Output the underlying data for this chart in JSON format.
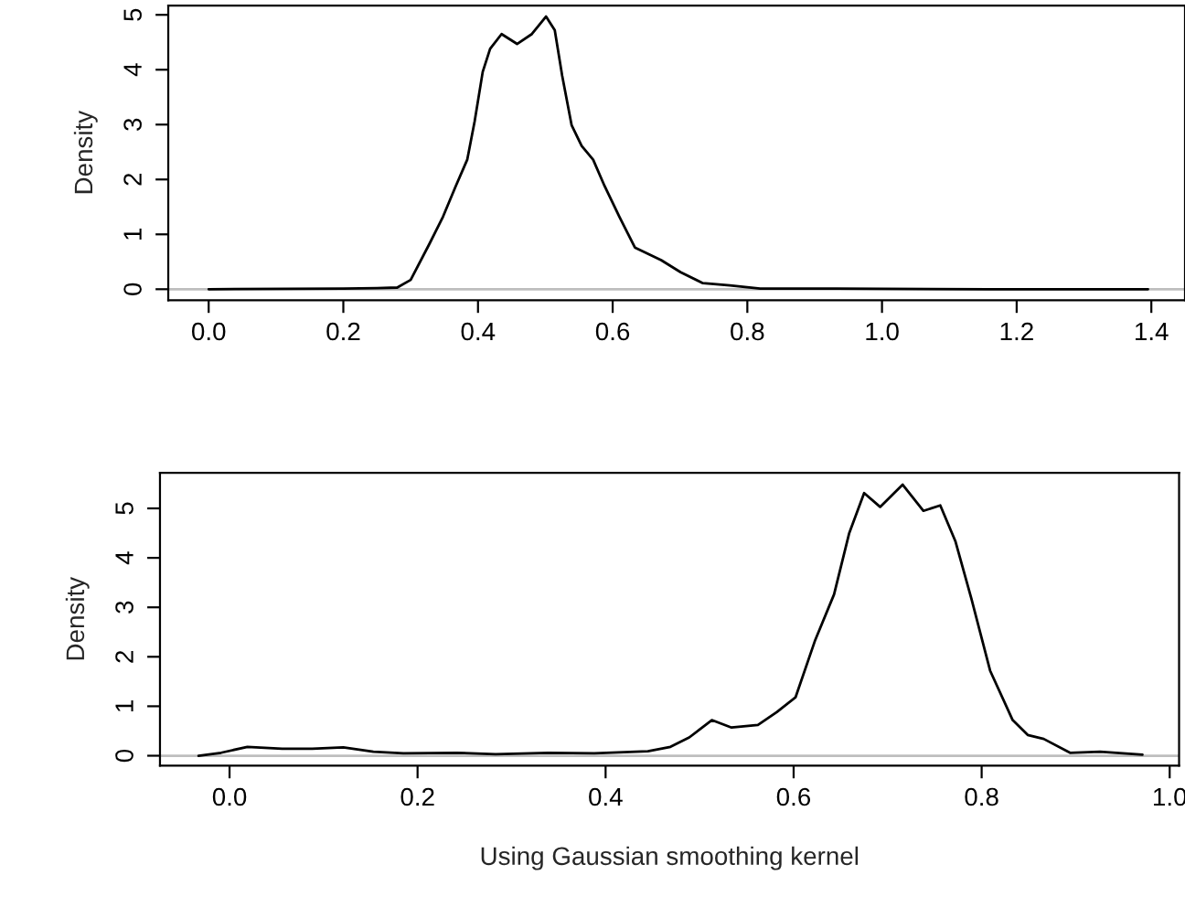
{
  "chart_data": [
    {
      "type": "line",
      "ylabel": "Density",
      "xlim": [
        -0.06,
        1.45
      ],
      "ylim": [
        -0.2,
        5.17
      ],
      "xticks": [
        {
          "value": 0,
          "label": "0.0"
        },
        {
          "value": 0.2,
          "label": "0.2"
        },
        {
          "value": 0.4,
          "label": "0.4"
        },
        {
          "value": 0.6,
          "label": "0.6"
        },
        {
          "value": 0.8,
          "label": "0.8"
        },
        {
          "value": 1.0,
          "label": "1.0"
        },
        {
          "value": 1.2,
          "label": "1.2"
        },
        {
          "value": 1.4,
          "label": "1.4"
        }
      ],
      "yticks": [
        0,
        1,
        2,
        3,
        4,
        5
      ],
      "grid": false,
      "legend": false,
      "marker": "none",
      "line_style": "solid",
      "ref_lines": [
        {
          "axis": "y",
          "value": 0,
          "color": "#bebebe"
        }
      ],
      "series": [
        {
          "color": "#000000",
          "x": [
            0.0,
            0.2,
            0.25,
            0.28,
            0.3,
            0.328,
            0.348,
            0.367,
            0.384,
            0.395,
            0.407,
            0.418,
            0.435,
            0.458,
            0.48,
            0.501,
            0.514,
            0.525,
            0.539,
            0.554,
            0.571,
            0.588,
            0.61,
            0.633,
            0.655,
            0.672,
            0.701,
            0.734,
            0.774,
            0.819,
            0.932,
            1.158,
            1.395
          ],
          "values": [
            0.0,
            0.01,
            0.02,
            0.03,
            0.17,
            0.83,
            1.32,
            1.88,
            2.36,
            3.06,
            3.96,
            4.38,
            4.65,
            4.47,
            4.65,
            4.97,
            4.72,
            3.89,
            2.99,
            2.61,
            2.36,
            1.88,
            1.32,
            0.76,
            0.63,
            0.53,
            0.31,
            0.11,
            0.07,
            0.01,
            0.01,
            0.0,
            0.0
          ]
        }
      ]
    },
    {
      "type": "line",
      "ylabel": "Density",
      "xlabel": "Using Gaussian smoothing kernel",
      "xlim": [
        -0.074,
        1.01
      ],
      "ylim": [
        -0.2,
        5.72
      ],
      "xticks": [
        {
          "value": 0,
          "label": "0.0"
        },
        {
          "value": 0.2,
          "label": "0.2"
        },
        {
          "value": 0.4,
          "label": "0.4"
        },
        {
          "value": 0.6,
          "label": "0.6"
        },
        {
          "value": 0.8,
          "label": "0.8"
        },
        {
          "value": 1.0,
          "label": "1.0"
        }
      ],
      "yticks": [
        0,
        1,
        2,
        3,
        4,
        5
      ],
      "grid": false,
      "legend": false,
      "marker": "none",
      "line_style": "solid",
      "ref_lines": [
        {
          "axis": "y",
          "value": 0,
          "color": "#bebebe"
        }
      ],
      "series": [
        {
          "color": "#000000",
          "x": [
            -0.033,
            -0.009,
            0.019,
            0.056,
            0.088,
            0.121,
            0.153,
            0.185,
            0.242,
            0.283,
            0.339,
            0.388,
            0.445,
            0.469,
            0.489,
            0.513,
            0.534,
            0.562,
            0.582,
            0.602,
            0.623,
            0.643,
            0.659,
            0.675,
            0.692,
            0.716,
            0.738,
            0.756,
            0.772,
            0.789,
            0.809,
            0.833,
            0.849,
            0.866,
            0.894,
            0.926,
            0.971
          ],
          "values": [
            0.0,
            0.06,
            0.18,
            0.14,
            0.14,
            0.17,
            0.08,
            0.05,
            0.06,
            0.03,
            0.06,
            0.05,
            0.09,
            0.18,
            0.37,
            0.72,
            0.57,
            0.62,
            0.88,
            1.18,
            2.34,
            3.26,
            4.49,
            5.31,
            5.03,
            5.48,
            4.95,
            5.06,
            4.34,
            3.18,
            1.72,
            0.72,
            0.42,
            0.34,
            0.06,
            0.08,
            0.02
          ]
        }
      ]
    }
  ]
}
